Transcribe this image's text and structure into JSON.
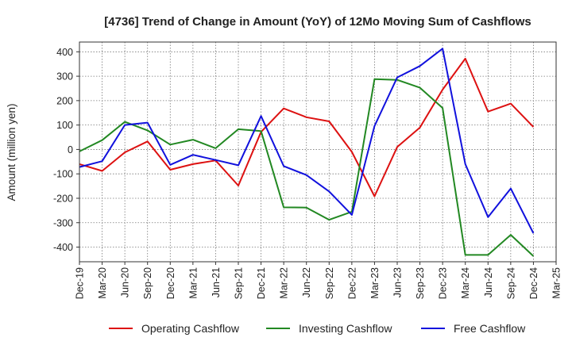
{
  "chart_data": {
    "type": "line",
    "title": "[4736]  Trend of Change in Amount (YoY) of 12Mo Moving Sum of Cashflows",
    "xlabel": "",
    "ylabel": "Amount (million yen)",
    "ylim": [
      -460,
      440
    ],
    "yticks": [
      400,
      300,
      200,
      100,
      0,
      -100,
      -200,
      -300,
      -400
    ],
    "grid": true,
    "legend_position": "bottom",
    "categories": [
      "Dec-19",
      "Mar-20",
      "Jun-20",
      "Sep-20",
      "Dec-20",
      "Mar-21",
      "Jun-21",
      "Sep-21",
      "Dec-21",
      "Mar-22",
      "Jun-22",
      "Sep-22",
      "Dec-22",
      "Mar-23",
      "Jun-23",
      "Sep-23",
      "Dec-23",
      "Mar-24",
      "Jun-24",
      "Sep-24",
      "Dec-24",
      "Mar-25"
    ],
    "series": [
      {
        "name": "Operating Cashflow",
        "color": "#dd1111",
        "values": [
          -60,
          -88,
          -12,
          33,
          -83,
          -60,
          -45,
          -148,
          72,
          168,
          132,
          115,
          -10,
          -192,
          10,
          90,
          245,
          372,
          155,
          188,
          92,
          null
        ]
      },
      {
        "name": "Investing Cashflow",
        "color": "#228822",
        "values": [
          -8,
          38,
          113,
          78,
          20,
          40,
          5,
          83,
          75,
          -237,
          -238,
          -288,
          -255,
          288,
          285,
          253,
          170,
          -432,
          -432,
          -350,
          -437,
          null
        ]
      },
      {
        "name": "Free Cashflow",
        "color": "#1111dd",
        "values": [
          -72,
          -48,
          100,
          110,
          -63,
          -22,
          -43,
          -65,
          137,
          -68,
          -105,
          -172,
          -268,
          96,
          295,
          342,
          413,
          -60,
          -277,
          -160,
          -343,
          null
        ]
      }
    ]
  }
}
